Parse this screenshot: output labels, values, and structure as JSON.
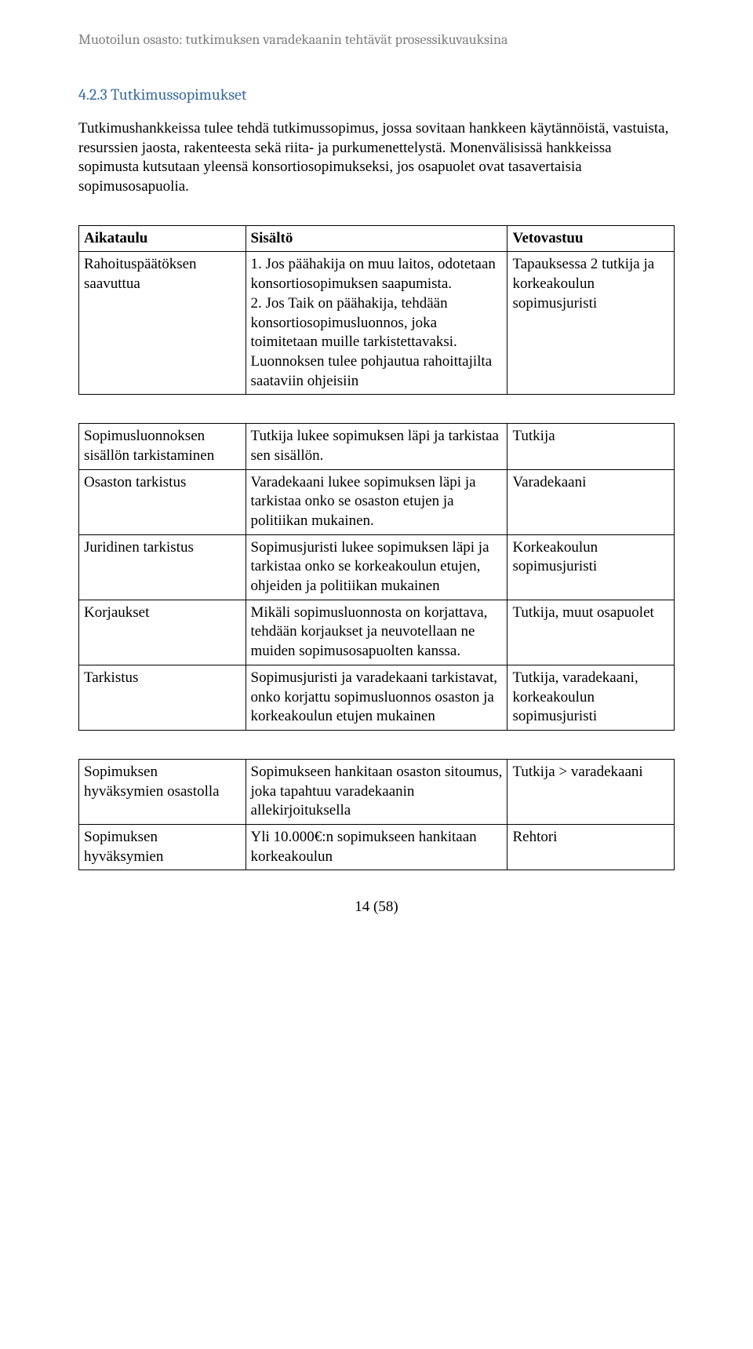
{
  "header": "Muotoilun osasto: tutkimuksen varadekaanin tehtävät prosessikuvauksina",
  "section_heading": "4.2.3 Tutkimussopimukset",
  "intro_paragraph": "Tutkimushankkeissa tulee tehdä tutkimussopimus, jossa sovitaan hankkeen käytännöistä, vastuista, resurssien jaosta, rakenteesta sekä riita- ja purkumenettelystä. Monenvälisissä hankkeissa sopimusta kutsutaan yleensä konsortiosopimukseksi, jos osapuolet ovat tasavertaisia sopimusosapuolia.",
  "table1": {
    "header": [
      "Aikataulu",
      "Sisältö",
      "Vetovastuu"
    ],
    "rows": [
      {
        "c0": "Rahoituspäätöksen saavuttua",
        "c1": "1. Jos päähakija on muu laitos, odotetaan konsortiosopimuksen saapumista.\n2. Jos Taik on päähakija, tehdään konsortiosopimusluonnos, joka toimitetaan muille tarkistettavaksi. Luonnoksen tulee pohjautua rahoittajilta saataviin ohjeisiin",
        "c2": "Tapauksessa 2 tutkija ja korkeakoulun sopimusjuristi"
      }
    ]
  },
  "table2": {
    "rows": [
      {
        "c0": "Sopimusluonnoksen sisällön tarkistaminen",
        "c1": "Tutkija lukee sopimuksen läpi ja tarkistaa sen sisällön.",
        "c2": "Tutkija"
      },
      {
        "c0": "Osaston tarkistus",
        "c1": "Varadekaani lukee sopimuksen läpi ja tarkistaa onko se osaston etujen ja politiikan mukainen.",
        "c2": "Varadekaani"
      },
      {
        "c0": "Juridinen tarkistus",
        "c1": "Sopimusjuristi lukee sopimuksen läpi ja tarkistaa onko se korkeakoulun etujen, ohjeiden ja politiikan mukainen",
        "c2": "Korkeakoulun sopimusjuristi"
      },
      {
        "c0": "Korjaukset",
        "c1": "Mikäli sopimusluonnosta on korjattava, tehdään korjaukset ja neuvotellaan ne muiden sopimusosapuolten kanssa.",
        "c2": "Tutkija, muut osapuolet"
      },
      {
        "c0": "Tarkistus",
        "c1": "Sopimusjuristi ja varadekaani tarkistavat, onko korjattu sopimusluonnos osaston ja korkeakoulun etujen mukainen",
        "c2": "Tutkija, varadekaani, korkeakoulun sopimusjuristi"
      }
    ]
  },
  "table3": {
    "rows": [
      {
        "c0": "Sopimuksen hyväksymien osastolla",
        "c1": "Sopimukseen hankitaan osaston sitoumus, joka tapahtuu varadekaanin allekirjoituksella",
        "c2": "Tutkija > varadekaani"
      },
      {
        "c0": "Sopimuksen hyväksymien",
        "c1": "Yli 10.000€:n sopimukseen hankitaan korkeakoulun",
        "c2": "Rehtori"
      }
    ]
  },
  "page_number": "14 (58)",
  "colors": {
    "header_text": "#808080",
    "heading_text": "#3a6aa0",
    "body_text": "#000000",
    "border": "#000000",
    "background": "#ffffff"
  },
  "fonts": {
    "header_family": "Cambria",
    "body_family": "Times New Roman",
    "header_size_pt": 13,
    "heading_size_pt": 15,
    "body_size_pt": 14
  }
}
